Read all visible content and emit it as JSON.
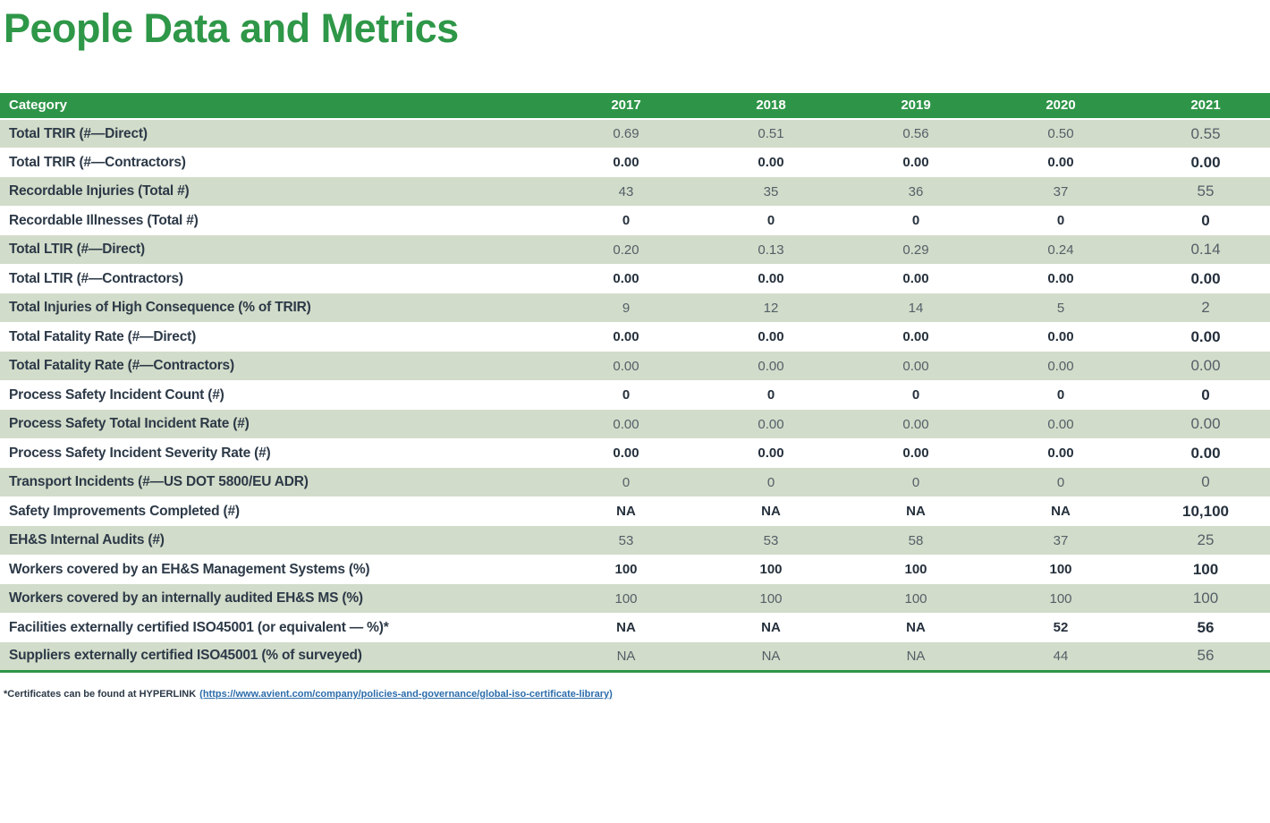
{
  "page": {
    "title": "People Data and Metrics"
  },
  "colors": {
    "accent_green": "#2e9548",
    "row_green": "#d2dcca",
    "text_dark": "#2c3947",
    "value_gray": "#535f67",
    "link_blue": "#2b6cab"
  },
  "table": {
    "headers": [
      "Category",
      "2017",
      "2018",
      "2019",
      "2020",
      "2021"
    ],
    "rows": [
      {
        "label": "Total TRIR (#—Direct)",
        "values": [
          "0.69",
          "0.51",
          "0.56",
          "0.50",
          "0.55"
        ]
      },
      {
        "label": "Total TRIR (#—Contractors)",
        "values": [
          "0.00",
          "0.00",
          "0.00",
          "0.00",
          "0.00"
        ]
      },
      {
        "label": "Recordable Injuries (Total #)",
        "values": [
          "43",
          "35",
          "36",
          "37",
          "55"
        ]
      },
      {
        "label": "Recordable Illnesses (Total #)",
        "values": [
          "0",
          "0",
          "0",
          "0",
          "0"
        ]
      },
      {
        "label": "Total LTIR (#—Direct)",
        "values": [
          "0.20",
          "0.13",
          "0.29",
          "0.24",
          "0.14"
        ]
      },
      {
        "label": "Total LTIR (#—Contractors)",
        "values": [
          "0.00",
          "0.00",
          "0.00",
          "0.00",
          "0.00"
        ]
      },
      {
        "label": "Total Injuries of High Consequence (% of TRIR)",
        "values": [
          "9",
          "12",
          "14",
          "5",
          "2"
        ]
      },
      {
        "label": "Total Fatality Rate (#—Direct)",
        "values": [
          "0.00",
          "0.00",
          "0.00",
          "0.00",
          "0.00"
        ]
      },
      {
        "label": "Total Fatality Rate (#—Contractors)",
        "values": [
          "0.00",
          "0.00",
          "0.00",
          "0.00",
          "0.00"
        ]
      },
      {
        "label": "Process Safety Incident Count (#)",
        "values": [
          "0",
          "0",
          "0",
          "0",
          "0"
        ]
      },
      {
        "label": "Process Safety Total Incident Rate (#)",
        "values": [
          "0.00",
          "0.00",
          "0.00",
          "0.00",
          "0.00"
        ]
      },
      {
        "label": "Process Safety Incident Severity Rate (#)",
        "values": [
          "0.00",
          "0.00",
          "0.00",
          "0.00",
          "0.00"
        ]
      },
      {
        "label": "Transport Incidents (#—US DOT 5800/EU ADR)",
        "values": [
          "0",
          "0",
          "0",
          "0",
          "0"
        ]
      },
      {
        "label": "Safety Improvements Completed (#)",
        "values": [
          "NA",
          "NA",
          "NA",
          "NA",
          "10,100"
        ]
      },
      {
        "label": "EH&S Internal Audits (#)",
        "values": [
          "53",
          "53",
          "58",
          "37",
          "25"
        ]
      },
      {
        "label": "Workers covered by an EH&S Management Systems (%)",
        "values": [
          "100",
          "100",
          "100",
          "100",
          "100"
        ]
      },
      {
        "label": "Workers covered by an internally audited EH&S MS (%)",
        "values": [
          "100",
          "100",
          "100",
          "100",
          "100"
        ]
      },
      {
        "label": "Facilities externally certified ISO45001 (or equivalent — %)*",
        "values": [
          "NA",
          "NA",
          "NA",
          "52",
          "56"
        ]
      },
      {
        "label": "Suppliers externally certified ISO45001 (% of surveyed)",
        "values": [
          "NA",
          "NA",
          "NA",
          "44",
          "56"
        ]
      }
    ]
  },
  "footnote": {
    "prefix": "*Certificates can be found at HYPERLINK",
    "link_text": "(https://www.avient.com/company/policies-and-governance/global-iso-certificate-library)"
  }
}
